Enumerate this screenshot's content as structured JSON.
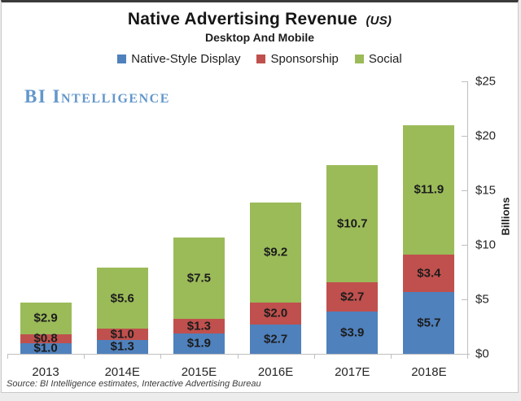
{
  "header": {
    "title": "Native Advertising Revenue",
    "title_suffix": "(US)",
    "subtitle": "Desktop And Mobile"
  },
  "brand": "BI Intelligence",
  "footer": {
    "source": "Source: BI Intelligence estimates, Interactive Advertising Bureau"
  },
  "chart_data": {
    "type": "bar",
    "stacked": true,
    "title": "Native Advertising Revenue (US)",
    "subtitle": "Desktop And Mobile",
    "categories": [
      "2013",
      "2014E",
      "2015E",
      "2016E",
      "2017E",
      "2018E"
    ],
    "series": [
      {
        "name": "Native-Style Display",
        "color": "#4f81bd",
        "values": [
          1.0,
          1.3,
          1.9,
          2.7,
          3.9,
          5.7
        ]
      },
      {
        "name": "Sponsorship",
        "color": "#c0504d",
        "values": [
          0.8,
          1.0,
          1.3,
          2.0,
          2.7,
          3.4
        ]
      },
      {
        "name": "Social",
        "color": "#9bbb59",
        "values": [
          2.9,
          5.6,
          7.5,
          9.2,
          10.7,
          11.9
        ]
      }
    ],
    "data_label_prefix": "$",
    "ylabel": "Billions",
    "ylim": [
      0,
      25
    ],
    "yticks": [
      {
        "label": "$0",
        "value": 0
      },
      {
        "label": "$5",
        "value": 5
      },
      {
        "label": "$10",
        "value": 10
      },
      {
        "label": "$15",
        "value": 15
      },
      {
        "label": "$20",
        "value": 20
      },
      {
        "label": "$25",
        "value": 25
      }
    ],
    "legend_position": "top",
    "grid": false,
    "axis_color": "#bfbfbf"
  }
}
